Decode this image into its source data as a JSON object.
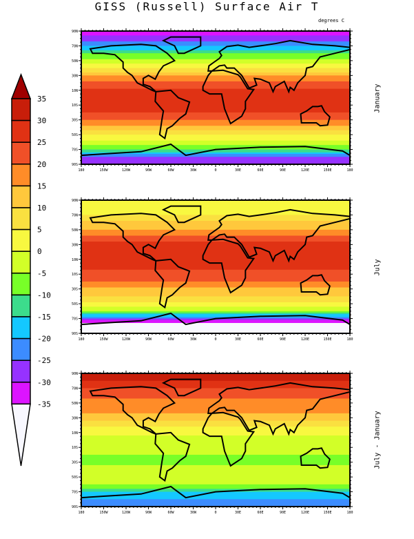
{
  "title": "GISS (Russell) Surface Air T",
  "units": "degrees C",
  "panels": [
    {
      "label": "January",
      "profile": [
        [
          90,
          -32
        ],
        [
          80,
          -28
        ],
        [
          70,
          -20
        ],
        [
          60,
          -10
        ],
        [
          50,
          -3
        ],
        [
          40,
          5
        ],
        [
          30,
          15
        ],
        [
          20,
          22
        ],
        [
          10,
          26
        ],
        [
          0,
          27
        ],
        [
          -10,
          27
        ],
        [
          -20,
          25
        ],
        [
          -30,
          20
        ],
        [
          -40,
          13
        ],
        [
          -50,
          5
        ],
        [
          -60,
          -1
        ],
        [
          -70,
          -10
        ],
        [
          -80,
          -25
        ],
        [
          -90,
          -30
        ]
      ]
    },
    {
      "label": "July",
      "profile": [
        [
          90,
          0
        ],
        [
          80,
          2
        ],
        [
          70,
          5
        ],
        [
          60,
          12
        ],
        [
          50,
          15
        ],
        [
          40,
          22
        ],
        [
          30,
          27
        ],
        [
          20,
          28
        ],
        [
          10,
          27
        ],
        [
          0,
          26
        ],
        [
          -10,
          24
        ],
        [
          -20,
          20
        ],
        [
          -30,
          14
        ],
        [
          -40,
          10
        ],
        [
          -50,
          4
        ],
        [
          -60,
          -5
        ],
        [
          -70,
          -25
        ],
        [
          -80,
          -45
        ],
        [
          -90,
          -55
        ]
      ]
    },
    {
      "label": "July - January",
      "profile": [
        [
          90,
          32
        ],
        [
          80,
          30
        ],
        [
          70,
          25
        ],
        [
          60,
          22
        ],
        [
          50,
          18
        ],
        [
          40,
          17
        ],
        [
          30,
          12
        ],
        [
          20,
          6
        ],
        [
          10,
          1
        ],
        [
          0,
          -1
        ],
        [
          -10,
          -3
        ],
        [
          -20,
          -5
        ],
        [
          -30,
          -6
        ],
        [
          -40,
          -3
        ],
        [
          -50,
          -1
        ],
        [
          -60,
          -4
        ],
        [
          -70,
          -15
        ],
        [
          -80,
          -20
        ],
        [
          -90,
          -25
        ]
      ]
    }
  ],
  "lat_ticks": [
    "90N",
    "70N",
    "50N",
    "30N",
    "10N",
    "10S",
    "30S",
    "50S",
    "70S",
    "90S"
  ],
  "lon_ticks": [
    "180",
    "150W",
    "120W",
    "90W",
    "60W",
    "30W",
    "0",
    "30E",
    "60E",
    "90E",
    "120E",
    "150E",
    "180"
  ],
  "colorbar": {
    "levels": [
      "35",
      "30",
      "25",
      "20",
      "15",
      "10",
      "5",
      "0",
      "-5",
      "-10",
      "-15",
      "-20",
      "-25",
      "-30",
      "-35"
    ],
    "level_values": [
      35,
      30,
      25,
      20,
      15,
      10,
      5,
      0,
      -5,
      -10,
      -15,
      -20,
      -25,
      -30,
      -35
    ],
    "over_color": "#a00000",
    "under_color": "#f8f8ff",
    "colors": [
      "#c81e0a",
      "#e03214",
      "#f05028",
      "#ff8c28",
      "#ffc83c",
      "#fae040",
      "#f8f840",
      "#d2ff28",
      "#78ff28",
      "#3cdc8c",
      "#14c8ff",
      "#3c8cff",
      "#9632ff",
      "#dc14ff"
    ]
  }
}
